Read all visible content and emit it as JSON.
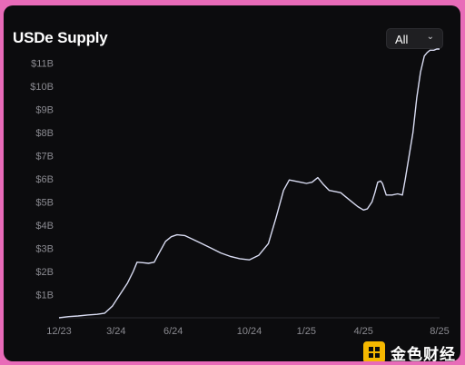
{
  "header": {
    "title": "USDe Supply",
    "range_select": {
      "value": "All",
      "icon": "chevron-down-icon"
    }
  },
  "colors": {
    "background": "#0c0c0e",
    "line": "#d9dcf2",
    "axis_text": "#8a8a90",
    "grid": "#2a2a30",
    "page": "#e86bb8"
  },
  "watermark": {
    "text": "金色财经",
    "logo": "jinse-logo-icon"
  },
  "chart_data": {
    "type": "line",
    "title": "USDe Supply",
    "xlabel": "",
    "ylabel": "",
    "x_ticks": [
      {
        "label": "12/23",
        "month": 0
      },
      {
        "label": "3/24",
        "month": 3
      },
      {
        "label": "6/24",
        "month": 6
      },
      {
        "label": "10/24",
        "month": 10
      },
      {
        "label": "1/25",
        "month": 13
      },
      {
        "label": "4/25",
        "month": 16
      },
      {
        "label": "8/25",
        "month": 20
      }
    ],
    "y_ticks": [
      {
        "label": "$1B",
        "value": 1
      },
      {
        "label": "$2B",
        "value": 2
      },
      {
        "label": "$3B",
        "value": 3
      },
      {
        "label": "$4B",
        "value": 4
      },
      {
        "label": "$5B",
        "value": 5
      },
      {
        "label": "$6B",
        "value": 6
      },
      {
        "label": "$7B",
        "value": 7
      },
      {
        "label": "$8B",
        "value": 8
      },
      {
        "label": "$9B",
        "value": 9
      },
      {
        "label": "$10B",
        "value": 10
      },
      {
        "label": "$11B",
        "value": 11
      }
    ],
    "xlim": [
      0,
      20
    ],
    "ylim": [
      0,
      11.6
    ],
    "grid": false,
    "series": [
      {
        "name": "",
        "x": [
          0,
          0.5,
          1.0,
          1.5,
          2.0,
          2.4,
          2.8,
          3.2,
          3.6,
          3.9,
          4.1,
          4.4,
          4.7,
          5.0,
          5.2,
          5.4,
          5.6,
          5.9,
          6.2,
          6.6,
          7.0,
          7.5,
          8.0,
          8.5,
          9.0,
          9.5,
          10.0,
          10.5,
          11.0,
          11.4,
          11.8,
          12.1,
          12.4,
          12.7,
          13.0,
          13.3,
          13.6,
          13.9,
          14.2,
          14.5,
          14.8,
          15.1,
          15.4,
          15.7,
          16.0,
          16.2,
          16.45,
          16.6,
          16.75,
          16.9,
          17.0,
          17.2,
          17.35,
          17.5,
          17.8,
          18.05,
          18.2,
          18.4,
          18.6,
          18.8,
          19.0,
          19.2,
          19.35,
          19.5,
          19.7,
          19.85,
          20.0
        ],
        "values": [
          0,
          0.05,
          0.08,
          0.12,
          0.15,
          0.2,
          0.5,
          1.0,
          1.5,
          2.0,
          2.4,
          2.38,
          2.35,
          2.4,
          2.7,
          3.0,
          3.3,
          3.5,
          3.58,
          3.55,
          3.4,
          3.2,
          3.0,
          2.8,
          2.65,
          2.55,
          2.5,
          2.7,
          3.2,
          4.3,
          5.5,
          5.95,
          5.9,
          5.85,
          5.8,
          5.85,
          6.05,
          5.75,
          5.5,
          5.45,
          5.4,
          5.2,
          5.0,
          4.8,
          4.65,
          4.7,
          5.0,
          5.4,
          5.85,
          5.9,
          5.8,
          5.3,
          5.3,
          5.3,
          5.35,
          5.3,
          6.0,
          7.0,
          8.0,
          9.5,
          10.6,
          11.3,
          11.45,
          11.55,
          11.55,
          11.6,
          11.6
        ]
      }
    ]
  }
}
